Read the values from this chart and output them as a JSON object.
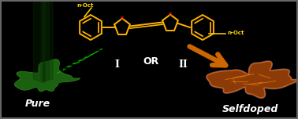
{
  "bg_color": "#000000",
  "molecule_color": "#FFB300",
  "sulfur_color": "#FF2200",
  "n_oct_color": "#FFD700",
  "text_or": "OR",
  "text_i": "I",
  "text_ii": "II",
  "text_pure": "Pure",
  "text_selfdoped": "Selfdoped",
  "white_text_color": "#FFFFFF",
  "dash_color": "#00BB00",
  "arrow_color": "#CC6600",
  "border_color": "#555555",
  "green_face": "#1E6B0E",
  "green_edge": "#2EA01A",
  "orange_face": "#A04010",
  "orange_highlight": "#CC6600",
  "purple_edge": "#AA88BB"
}
